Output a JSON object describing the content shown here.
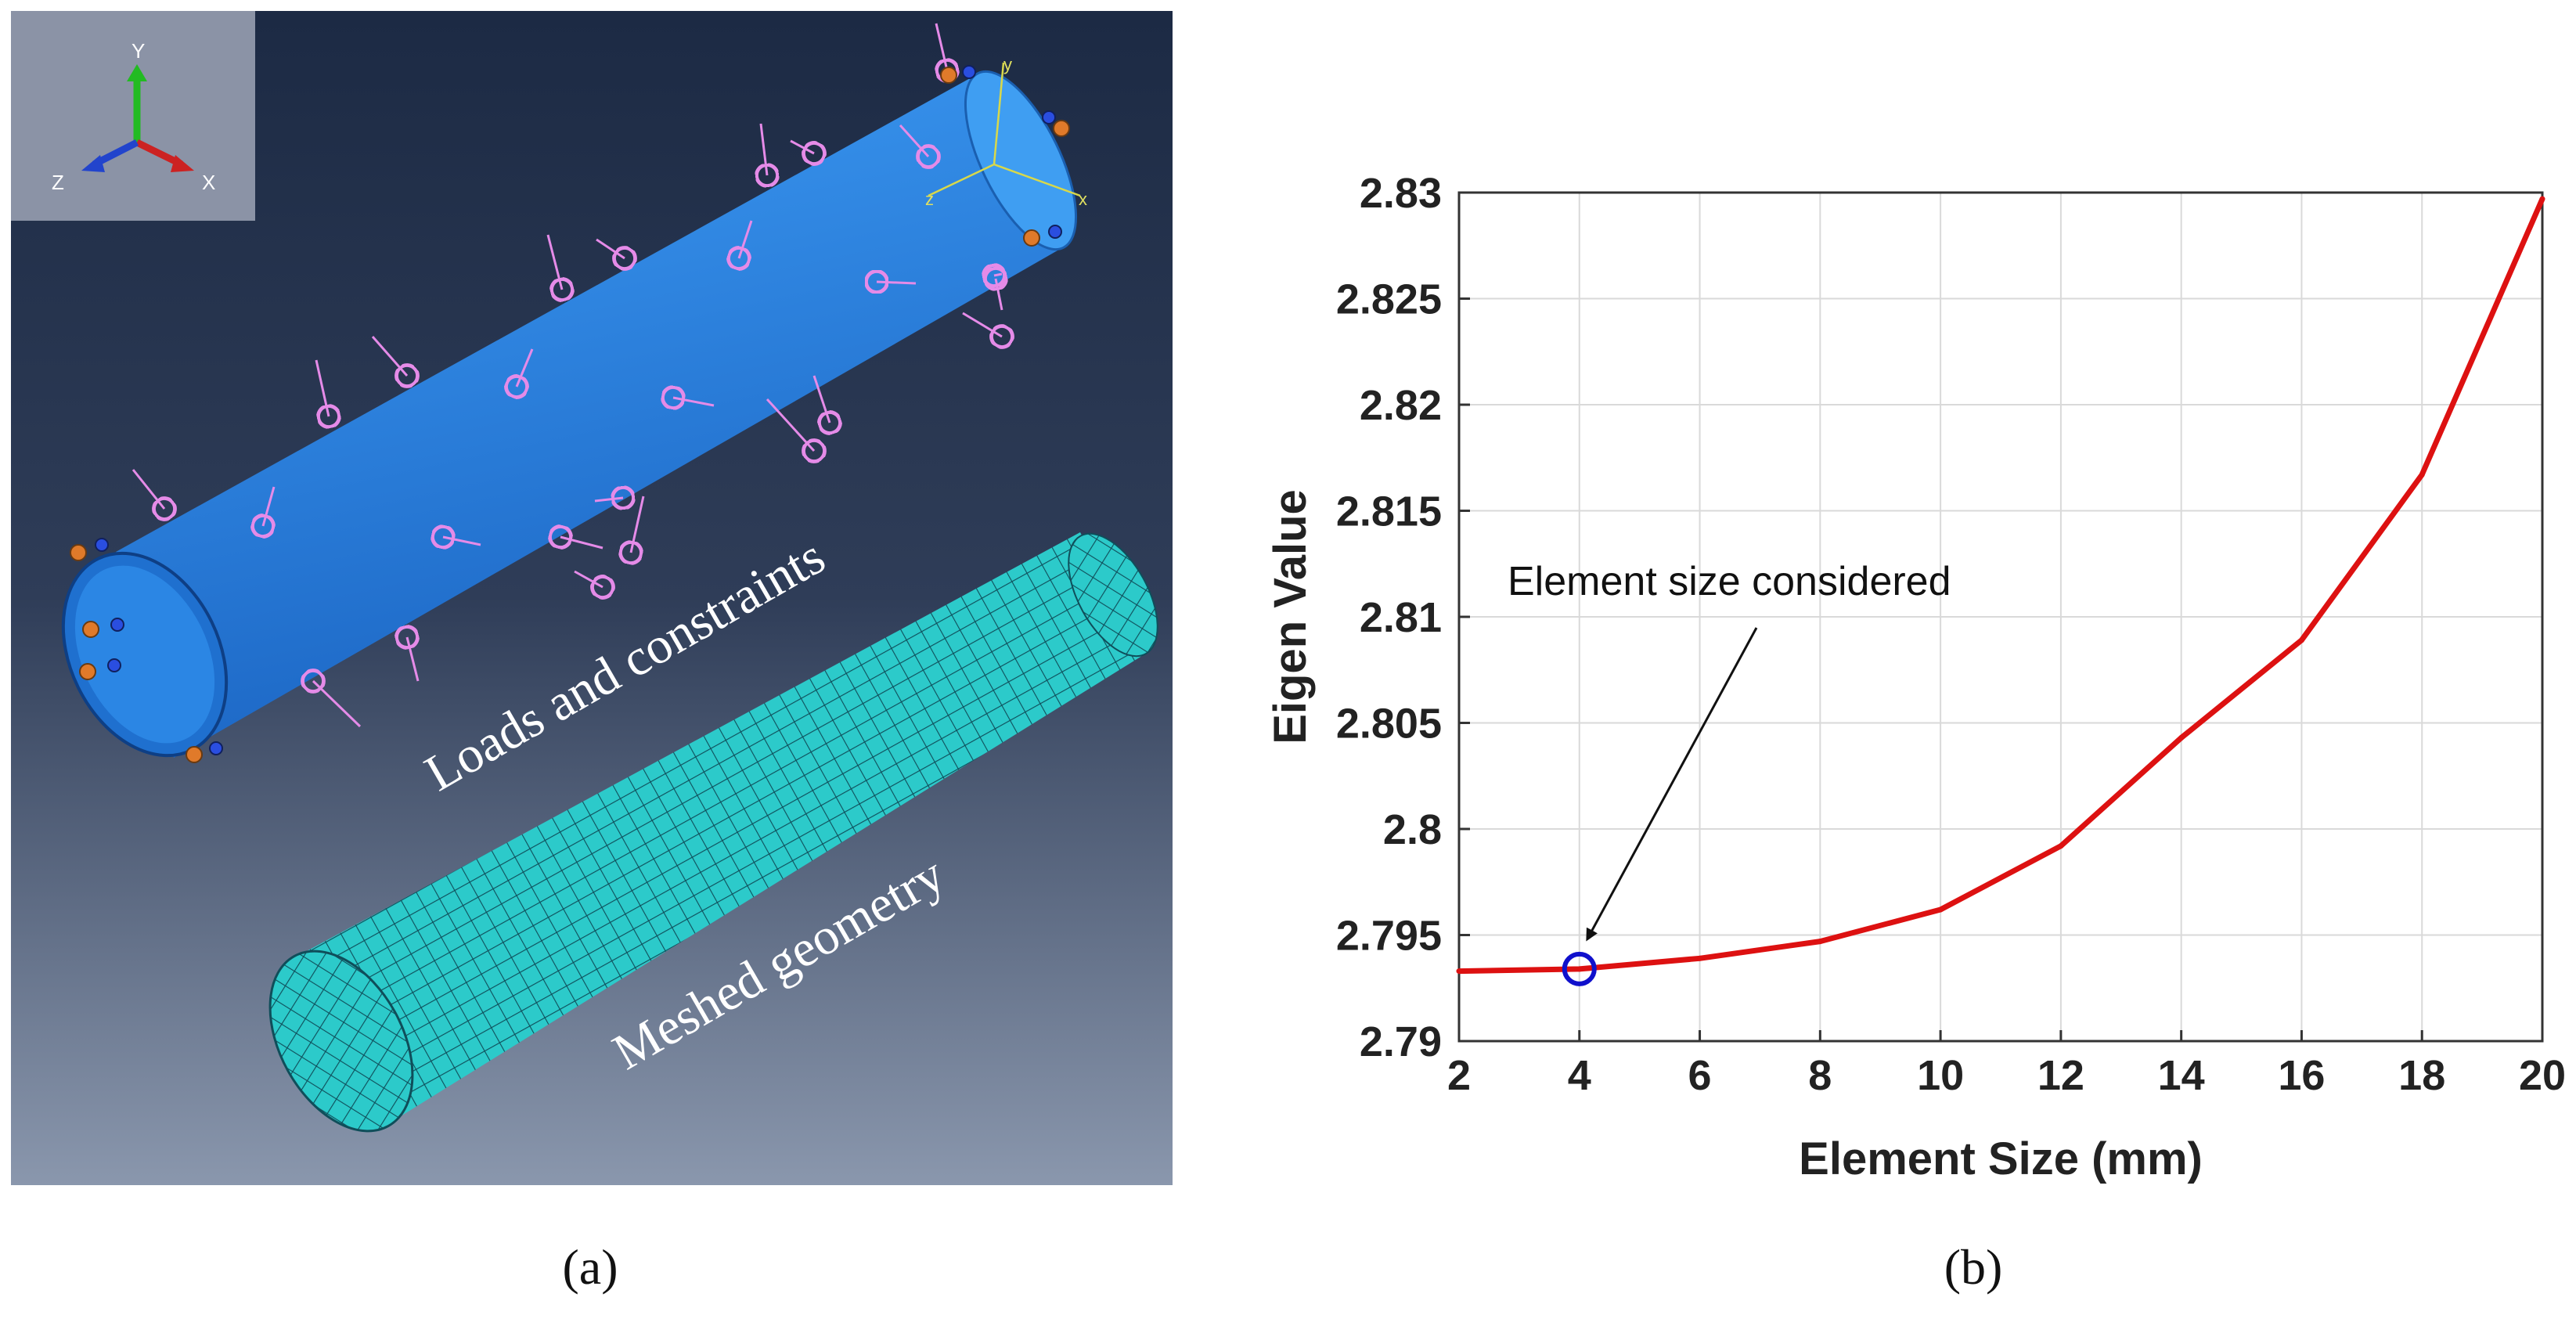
{
  "panel_a": {
    "caption": "(a)",
    "triad": {
      "y": "Y",
      "x": "X",
      "z": "Z"
    },
    "local_csys": {
      "y": "y",
      "x": "x",
      "z": "z"
    },
    "label_loads": "Loads and constraints",
    "label_mesh": "Meshed geometry",
    "colors": {
      "background_top": "#1c2a44",
      "background_bottom": "#8a97ad",
      "cylinder": "#2f86e0",
      "mesh": "#27c5c5",
      "load_arrows": "#e58be8",
      "constraints": "#e07a2a"
    }
  },
  "panel_b": {
    "caption": "(b)",
    "annotation": "Element size considered"
  },
  "chart_data": {
    "type": "line",
    "xlabel": "Element Size (mm)",
    "ylabel": "Eigen Value",
    "xlim": [
      2,
      20
    ],
    "ylim": [
      2.79,
      2.83
    ],
    "xticks": [
      2,
      4,
      6,
      8,
      10,
      12,
      14,
      16,
      18,
      20
    ],
    "xtick_labels": [
      "2",
      "4",
      "6",
      "8",
      "10",
      "12",
      "14",
      "16",
      "18",
      "20"
    ],
    "yticks": [
      2.79,
      2.795,
      2.8,
      2.805,
      2.81,
      2.815,
      2.82,
      2.825,
      2.83
    ],
    "ytick_labels": [
      "2.79",
      "2.795",
      "2.8",
      "2.805",
      "2.81",
      "2.815",
      "2.82",
      "2.825",
      "2.83"
    ],
    "grid": true,
    "series": [
      {
        "color": "#dd1111",
        "x": [
          2,
          4,
          6,
          8,
          10,
          12,
          14,
          16,
          18,
          20
        ],
        "y": [
          2.7933,
          2.7934,
          2.7939,
          2.7947,
          2.7962,
          2.7992,
          2.8043,
          2.8089,
          2.8167,
          2.8297
        ]
      }
    ],
    "highlight": {
      "x": 4,
      "y": 2.7934,
      "color": "#1010cc"
    }
  }
}
